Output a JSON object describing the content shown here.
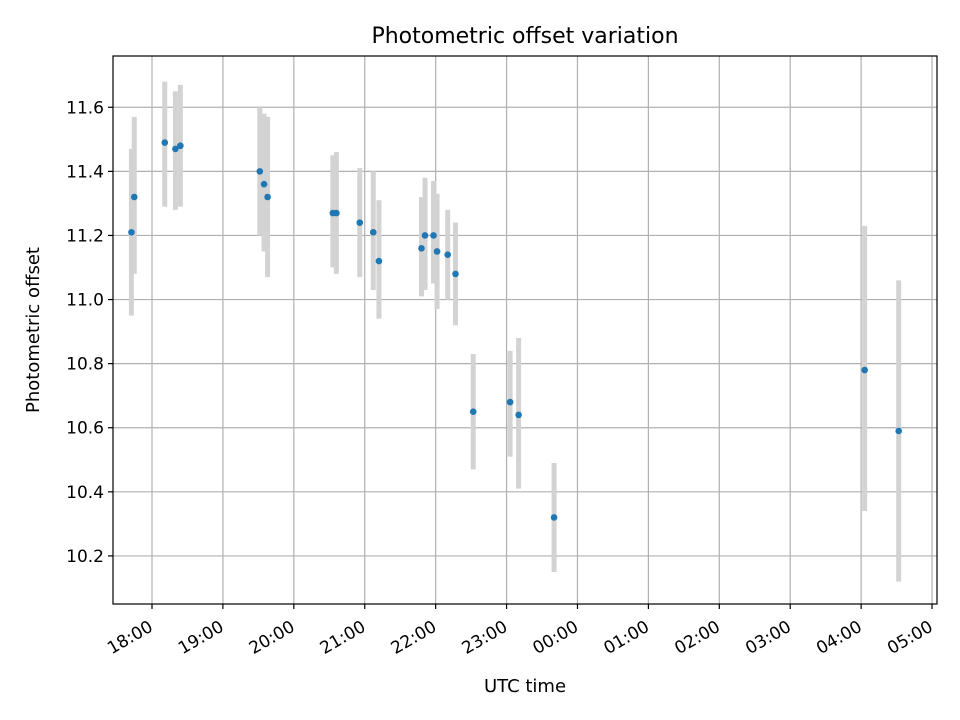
{
  "chart_data": {
    "type": "scatter",
    "title": "Photometric offset variation",
    "xlabel": "UTC time",
    "ylabel": "Photometric offset",
    "x_ticks": [
      "18:00",
      "19:00",
      "20:00",
      "21:00",
      "22:00",
      "23:00",
      "00:00",
      "01:00",
      "02:00",
      "03:00",
      "04:00",
      "05:00"
    ],
    "y_ticks": [
      "10.2",
      "10.4",
      "10.6",
      "10.8",
      "11.0",
      "11.2",
      "11.4",
      "11.6"
    ],
    "x_unit": "hours UTC (24+ = next day)",
    "xlim": [
      17.45,
      29.07
    ],
    "ylim": [
      10.05,
      11.76
    ],
    "grid": true,
    "point_color": "#1f77b4",
    "errorbar_color": "#d3d3d3",
    "points": [
      {
        "x": 17.71,
        "y": 11.21,
        "yerr_low": 10.95,
        "yerr_high": 11.47
      },
      {
        "x": 17.75,
        "y": 11.32,
        "yerr_low": 11.08,
        "yerr_high": 11.57
      },
      {
        "x": 18.18,
        "y": 11.49,
        "yerr_low": 11.29,
        "yerr_high": 11.68
      },
      {
        "x": 18.33,
        "y": 11.47,
        "yerr_low": 11.28,
        "yerr_high": 11.65
      },
      {
        "x": 18.4,
        "y": 11.48,
        "yerr_low": 11.29,
        "yerr_high": 11.67
      },
      {
        "x": 19.52,
        "y": 11.4,
        "yerr_low": 11.2,
        "yerr_high": 11.6
      },
      {
        "x": 19.58,
        "y": 11.36,
        "yerr_low": 11.15,
        "yerr_high": 11.58
      },
      {
        "x": 19.63,
        "y": 11.32,
        "yerr_low": 11.07,
        "yerr_high": 11.57
      },
      {
        "x": 20.55,
        "y": 11.27,
        "yerr_low": 11.1,
        "yerr_high": 11.45
      },
      {
        "x": 20.6,
        "y": 11.27,
        "yerr_low": 11.08,
        "yerr_high": 11.46
      },
      {
        "x": 20.93,
        "y": 11.24,
        "yerr_low": 11.07,
        "yerr_high": 11.41
      },
      {
        "x": 21.12,
        "y": 11.21,
        "yerr_low": 11.03,
        "yerr_high": 11.4
      },
      {
        "x": 21.2,
        "y": 11.12,
        "yerr_low": 10.94,
        "yerr_high": 11.31
      },
      {
        "x": 21.8,
        "y": 11.16,
        "yerr_low": 11.01,
        "yerr_high": 11.32
      },
      {
        "x": 21.85,
        "y": 11.2,
        "yerr_low": 11.03,
        "yerr_high": 11.38
      },
      {
        "x": 21.97,
        "y": 11.2,
        "yerr_low": 11.05,
        "yerr_high": 11.37
      },
      {
        "x": 22.02,
        "y": 11.15,
        "yerr_low": 10.97,
        "yerr_high": 11.33
      },
      {
        "x": 22.17,
        "y": 11.14,
        "yerr_low": 11.0,
        "yerr_high": 11.28
      },
      {
        "x": 22.28,
        "y": 11.08,
        "yerr_low": 10.92,
        "yerr_high": 11.24
      },
      {
        "x": 22.53,
        "y": 10.65,
        "yerr_low": 10.47,
        "yerr_high": 10.83
      },
      {
        "x": 23.05,
        "y": 10.68,
        "yerr_low": 10.51,
        "yerr_high": 10.84
      },
      {
        "x": 23.17,
        "y": 10.64,
        "yerr_low": 10.41,
        "yerr_high": 10.88
      },
      {
        "x": 23.67,
        "y": 10.32,
        "yerr_low": 10.15,
        "yerr_high": 10.49
      },
      {
        "x": 28.05,
        "y": 10.78,
        "yerr_low": 10.34,
        "yerr_high": 11.23
      },
      {
        "x": 28.53,
        "y": 10.59,
        "yerr_low": 10.12,
        "yerr_high": 11.06
      }
    ]
  }
}
